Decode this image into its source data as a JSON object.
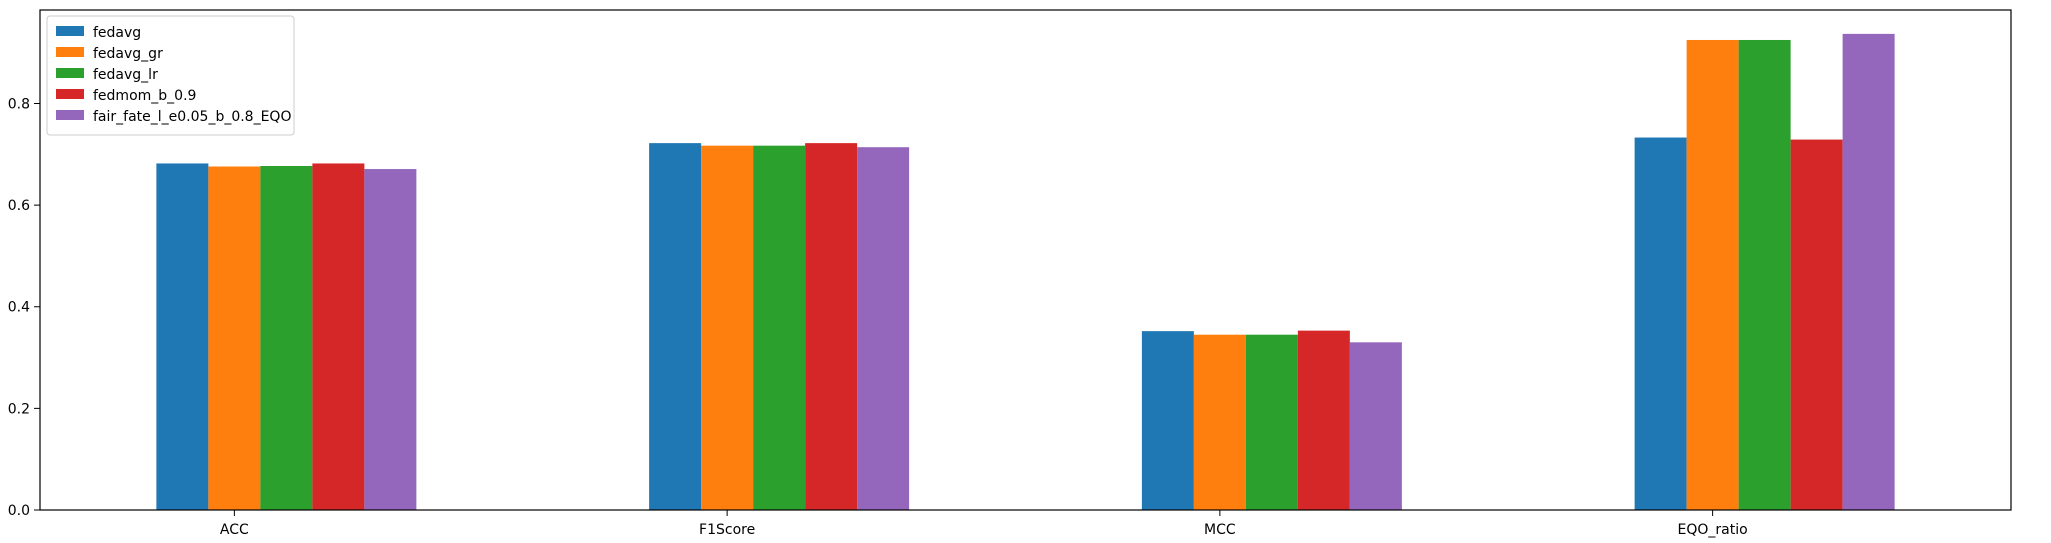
{
  "chart_data": {
    "type": "bar",
    "categories": [
      "ACC",
      "F1Score",
      "MCC",
      "EQO_ratio"
    ],
    "series": [
      {
        "name": "fedavg",
        "color": "#1f77b4",
        "values": [
          0.682,
          0.722,
          0.352,
          0.733
        ]
      },
      {
        "name": "fedavg_gr",
        "color": "#ff7f0e",
        "values": [
          0.676,
          0.717,
          0.345,
          0.925
        ]
      },
      {
        "name": "fedavg_lr",
        "color": "#2ca02c",
        "values": [
          0.677,
          0.717,
          0.345,
          0.925
        ]
      },
      {
        "name": "fedmom_b_0.9",
        "color": "#d62728",
        "values": [
          0.682,
          0.722,
          0.353,
          0.729
        ]
      },
      {
        "name": "fair_fate_l_e0.05_b_0.8_EQO",
        "color": "#9467bd",
        "values": [
          0.671,
          0.714,
          0.33,
          0.937
        ]
      }
    ],
    "yticks": [
      "0.0",
      "0.2",
      "0.4",
      "0.6",
      "0.8"
    ],
    "ylim": [
      0,
      0.984
    ],
    "grid": false,
    "legend_position": "top-left"
  }
}
